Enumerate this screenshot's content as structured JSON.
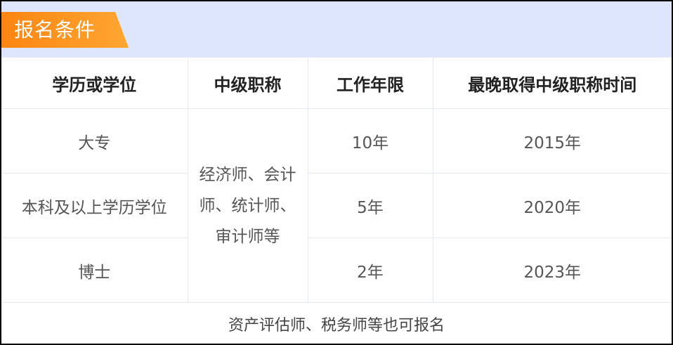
{
  "title": "报名条件",
  "headers": [
    "学历或学位",
    "中级职称",
    "工作年限",
    "最晚取得中级职称时间"
  ],
  "rows": [
    {
      "degree": "大专",
      "years": "10年",
      "deadline": "2015年"
    },
    {
      "degree": "本科及以上学历学位",
      "years": "5年",
      "deadline": "2020年"
    },
    {
      "degree": "博士",
      "years": "2年",
      "deadline": "2023年"
    }
  ],
  "title_merged": "经济师、会计师、统计师、审计师等",
  "footer": "资产评估师、税务师等也可报名",
  "colors": {
    "header_band": "#dde6fd",
    "tag": "#ff8a16",
    "border": "#000000"
  }
}
